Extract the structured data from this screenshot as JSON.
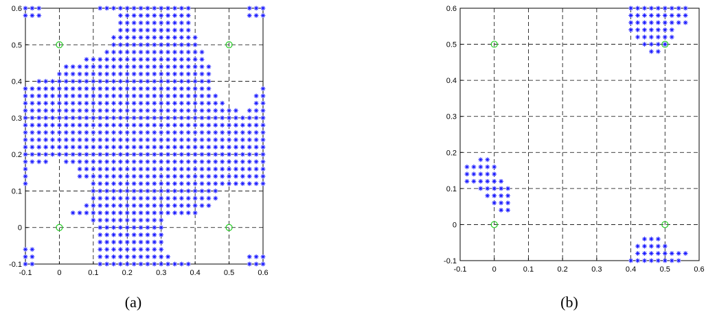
{
  "chart_data": [
    {
      "type": "scatter",
      "caption": "(a)",
      "xlim": [
        -0.1,
        0.6
      ],
      "ylim": [
        -0.1,
        0.6
      ],
      "x_ticks": [
        "-0.1",
        "0",
        "0.1",
        "0.2",
        "0.3",
        "0.4",
        "0.5",
        "0.6"
      ],
      "y_ticks": [
        "-0.1",
        "0",
        "0.1",
        "0.2",
        "0.3",
        "0.4",
        "0.5",
        "0.6"
      ],
      "grid": true,
      "grid_style": "dashed",
      "grid_step": 0.1,
      "series": [
        {
          "marker": "asterisk",
          "color": "#1a1aff",
          "step": 0.02,
          "point_rows": [
            {
              "y": -0.1,
              "ranges": [
                [
                  -0.1,
                  -0.08
                ],
                [
                  0.12,
                  0.38
                ],
                [
                  0.56,
                  0.6
                ]
              ]
            },
            {
              "y": -0.08,
              "ranges": [
                [
                  -0.1,
                  -0.08
                ],
                [
                  0.12,
                  0.32
                ],
                [
                  0.56,
                  0.6
                ]
              ]
            },
            {
              "y": -0.06,
              "ranges": [
                [
                  -0.1,
                  -0.08
                ],
                [
                  0.12,
                  0.3
                ]
              ]
            },
            {
              "y": -0.04,
              "ranges": [
                [
                  0.12,
                  0.3
                ]
              ]
            },
            {
              "y": -0.02,
              "ranges": [
                [
                  0.12,
                  0.3
                ]
              ]
            },
            {
              "y": 0.0,
              "ranges": [
                [
                  0.12,
                  0.3
                ]
              ]
            },
            {
              "y": 0.02,
              "ranges": [
                [
                  0.1,
                  0.3
                ]
              ]
            },
            {
              "y": 0.04,
              "ranges": [
                [
                  0.04,
                  0.4
                ]
              ]
            },
            {
              "y": 0.06,
              "ranges": [
                [
                  0.08,
                  0.44
                ]
              ]
            },
            {
              "y": 0.08,
              "ranges": [
                [
                  0.1,
                  0.46
                ]
              ]
            },
            {
              "y": 0.1,
              "ranges": [
                [
                  0.1,
                  0.46
                ]
              ]
            },
            {
              "y": 0.12,
              "ranges": [
                [
                  -0.1,
                  -0.1
                ],
                [
                  0.1,
                  0.6
                ]
              ]
            },
            {
              "y": 0.14,
              "ranges": [
                [
                  -0.1,
                  -0.1
                ],
                [
                  0.06,
                  0.6
                ]
              ]
            },
            {
              "y": 0.16,
              "ranges": [
                [
                  -0.1,
                  -0.1
                ],
                [
                  0.06,
                  0.6
                ]
              ]
            },
            {
              "y": 0.18,
              "ranges": [
                [
                  -0.1,
                  -0.04
                ],
                [
                  0.02,
                  0.6
                ]
              ]
            },
            {
              "y": 0.2,
              "ranges": [
                [
                  -0.1,
                  0.6
                ]
              ]
            },
            {
              "y": 0.22,
              "ranges": [
                [
                  -0.1,
                  0.6
                ]
              ]
            },
            {
              "y": 0.24,
              "ranges": [
                [
                  -0.1,
                  0.6
                ]
              ]
            },
            {
              "y": 0.26,
              "ranges": [
                [
                  -0.1,
                  0.6
                ]
              ]
            },
            {
              "y": 0.28,
              "ranges": [
                [
                  -0.1,
                  0.6
                ]
              ]
            },
            {
              "y": 0.3,
              "ranges": [
                [
                  -0.1,
                  0.6
                ]
              ]
            },
            {
              "y": 0.32,
              "ranges": [
                [
                  -0.1,
                  0.52
                ],
                [
                  0.56,
                  0.6
                ]
              ]
            },
            {
              "y": 0.34,
              "ranges": [
                [
                  -0.1,
                  0.48
                ],
                [
                  0.58,
                  0.6
                ]
              ]
            },
            {
              "y": 0.36,
              "ranges": [
                [
                  -0.1,
                  0.46
                ],
                [
                  0.58,
                  0.6
                ]
              ]
            },
            {
              "y": 0.38,
              "ranges": [
                [
                  -0.1,
                  0.44
                ],
                [
                  0.6,
                  0.6
                ]
              ]
            },
            {
              "y": 0.4,
              "ranges": [
                [
                  -0.06,
                  0.44
                ]
              ]
            },
            {
              "y": 0.42,
              "ranges": [
                [
                  0.0,
                  0.44
                ]
              ]
            },
            {
              "y": 0.44,
              "ranges": [
                [
                  0.02,
                  0.44
                ]
              ]
            },
            {
              "y": 0.46,
              "ranges": [
                [
                  0.08,
                  0.42
                ]
              ]
            },
            {
              "y": 0.48,
              "ranges": [
                [
                  0.14,
                  0.42
                ]
              ]
            },
            {
              "y": 0.5,
              "ranges": [
                [
                  0.16,
                  0.4
                ]
              ]
            },
            {
              "y": 0.52,
              "ranges": [
                [
                  0.16,
                  0.4
                ]
              ]
            },
            {
              "y": 0.54,
              "ranges": [
                [
                  0.18,
                  0.38
                ]
              ]
            },
            {
              "y": 0.56,
              "ranges": [
                [
                  0.18,
                  0.38
                ]
              ]
            },
            {
              "y": 0.58,
              "ranges": [
                [
                  -0.1,
                  -0.06
                ],
                [
                  0.18,
                  0.38
                ],
                [
                  0.56,
                  0.6
                ]
              ]
            },
            {
              "y": 0.6,
              "ranges": [
                [
                  -0.1,
                  -0.06
                ],
                [
                  0.12,
                  0.38
                ],
                [
                  0.56,
                  0.6
                ]
              ]
            }
          ]
        },
        {
          "marker": "circle",
          "color": "#22cc22",
          "points": [
            [
              0,
              0
            ],
            [
              0.5,
              0
            ],
            [
              0,
              0.5
            ],
            [
              0.5,
              0.5
            ]
          ]
        }
      ]
    },
    {
      "type": "scatter",
      "caption": "(b)",
      "xlim": [
        -0.1,
        0.6
      ],
      "ylim": [
        -0.1,
        0.6
      ],
      "x_ticks": [
        "-0.1",
        "0",
        "0.1",
        "0.2",
        "0.3",
        "0.4",
        "0.5",
        "0.6"
      ],
      "y_ticks": [
        "-0.1",
        "0",
        "0.1",
        "0.2",
        "0.3",
        "0.4",
        "0.5",
        "0.6"
      ],
      "grid": true,
      "grid_style": "dashed",
      "grid_step": 0.1,
      "series": [
        {
          "marker": "asterisk",
          "color": "#1a1aff",
          "step": 0.02,
          "point_rows": [
            {
              "y": -0.1,
              "ranges": [
                [
                  0.4,
                  0.54
                ]
              ]
            },
            {
              "y": -0.08,
              "ranges": [
                [
                  0.42,
                  0.56
                ]
              ]
            },
            {
              "y": -0.06,
              "ranges": [
                [
                  0.42,
                  0.5
                ]
              ]
            },
            {
              "y": -0.04,
              "ranges": [
                [
                  0.44,
                  0.48
                ]
              ]
            },
            {
              "y": 0.04,
              "ranges": [
                [
                  0.02,
                  0.04
                ]
              ]
            },
            {
              "y": 0.06,
              "ranges": [
                [
                  0.0,
                  0.04
                ]
              ]
            },
            {
              "y": 0.08,
              "ranges": [
                [
                  -0.02,
                  0.04
                ]
              ]
            },
            {
              "y": 0.1,
              "ranges": [
                [
                  -0.04,
                  0.04
                ]
              ]
            },
            {
              "y": 0.12,
              "ranges": [
                [
                  -0.08,
                  0.02
                ]
              ]
            },
            {
              "y": 0.14,
              "ranges": [
                [
                  -0.08,
                  0.0
                ]
              ]
            },
            {
              "y": 0.16,
              "ranges": [
                [
                  -0.08,
                  0.0
                ]
              ]
            },
            {
              "y": 0.18,
              "ranges": [
                [
                  -0.04,
                  -0.02
                ]
              ]
            },
            {
              "y": 0.48,
              "ranges": [
                [
                  0.46,
                  0.48
                ]
              ]
            },
            {
              "y": 0.5,
              "ranges": [
                [
                  0.44,
                  0.5
                ]
              ]
            },
            {
              "y": 0.52,
              "ranges": [
                [
                  0.42,
                  0.52
                ]
              ]
            },
            {
              "y": 0.54,
              "ranges": [
                [
                  0.4,
                  0.52
                ]
              ]
            },
            {
              "y": 0.56,
              "ranges": [
                [
                  0.4,
                  0.56
                ]
              ]
            },
            {
              "y": 0.58,
              "ranges": [
                [
                  0.4,
                  0.56
                ]
              ]
            },
            {
              "y": 0.6,
              "ranges": [
                [
                  0.4,
                  0.56
                ]
              ]
            }
          ]
        },
        {
          "marker": "circle",
          "color": "#22cc22",
          "points": [
            [
              0,
              0
            ],
            [
              0.5,
              0
            ],
            [
              0,
              0.5
            ],
            [
              0.5,
              0.5
            ]
          ]
        }
      ]
    }
  ]
}
